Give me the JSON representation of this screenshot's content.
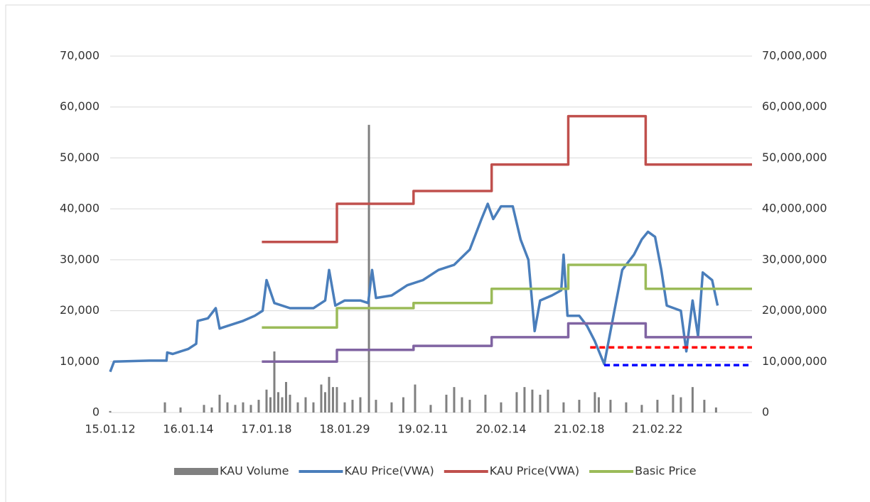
{
  "chart_data": {
    "type": "line",
    "xlim": [
      0,
      8.21
    ],
    "xticks": [
      {
        "value": 0,
        "label": "15.01.12"
      },
      {
        "value": 1,
        "label": "16.01.14"
      },
      {
        "value": 2,
        "label": "17.01.18"
      },
      {
        "value": 3,
        "label": "18.01.29"
      },
      {
        "value": 4,
        "label": "19.02.11"
      },
      {
        "value": 5,
        "label": "20.02.14"
      },
      {
        "value": 6,
        "label": "21.02.18"
      },
      {
        "value": 7,
        "label": "21.02.22"
      }
    ],
    "ylim": [
      0,
      70000
    ],
    "yticks": [
      0,
      {
        "value": 10000,
        "label": "10,000"
      },
      {
        "value": 20000,
        "label": "20,000"
      },
      {
        "value": 30000,
        "label": "30,000"
      },
      {
        "value": 40000,
        "label": "40,000"
      },
      {
        "value": 50000,
        "label": "50,000"
      },
      {
        "value": 60000,
        "label": "60,000"
      },
      {
        "value": 70000,
        "label": "70,000"
      }
    ],
    "y2lim": [
      0,
      70000000
    ],
    "y2ticks": [
      0,
      {
        "value": 10000000,
        "label": "10,000,000"
      },
      {
        "value": 20000000,
        "label": "20,000,000"
      },
      {
        "value": 30000000,
        "label": "30,000,000"
      },
      {
        "value": 40000000,
        "label": "40,000,000"
      },
      {
        "value": 50000000,
        "label": "50,000,000"
      },
      {
        "value": 60000000,
        "label": "60,000,000"
      },
      {
        "value": 70000000,
        "label": "70,000,000"
      }
    ],
    "grid": true,
    "legend": "bottom",
    "series": [
      {
        "name": "KAU Volume",
        "type": "bar",
        "axis": "y2",
        "color": "#808080",
        "x": [
          0.0,
          0.7,
          0.9,
          1.2,
          1.3,
          1.4,
          1.5,
          1.6,
          1.7,
          1.8,
          1.9,
          2.0,
          2.05,
          2.1,
          2.15,
          2.2,
          2.25,
          2.3,
          2.4,
          2.5,
          2.6,
          2.7,
          2.75,
          2.8,
          2.85,
          2.9,
          3.0,
          3.1,
          3.2,
          3.31,
          3.4,
          3.6,
          3.75,
          3.9,
          4.1,
          4.3,
          4.4,
          4.5,
          4.6,
          4.8,
          5.0,
          5.2,
          5.3,
          5.4,
          5.5,
          5.6,
          5.8,
          6.0,
          6.2,
          6.25,
          6.4,
          6.6,
          6.8,
          7.0,
          7.2,
          7.3,
          7.45,
          7.6,
          7.75
        ],
        "values": [
          300000,
          2000000,
          1000000,
          1500000,
          1000000,
          3500000,
          2000000,
          1500000,
          2000000,
          1500000,
          2500000,
          4500000,
          3000000,
          12000000,
          4000000,
          3000000,
          6000000,
          3500000,
          2000000,
          3000000,
          2000000,
          5500000,
          4000000,
          7000000,
          5000000,
          5000000,
          2000000,
          2500000,
          3000000,
          56500000,
          2500000,
          2000000,
          3000000,
          5500000,
          1500000,
          3500000,
          5000000,
          3000000,
          2500000,
          3500000,
          2000000,
          4000000,
          5000000,
          4500000,
          3500000,
          4500000,
          2000000,
          2500000,
          4000000,
          3000000,
          2500000,
          2000000,
          1500000,
          2500000,
          3500000,
          3000000,
          5000000,
          2500000,
          1000000
        ]
      },
      {
        "name": "KAU Price(VWA)",
        "color": "#4a7ebb",
        "x": [
          0.0,
          0.05,
          0.5,
          0.72,
          0.73,
          0.8,
          1.0,
          1.1,
          1.12,
          1.25,
          1.35,
          1.4,
          1.5,
          1.7,
          1.85,
          1.95,
          2.0,
          2.1,
          2.3,
          2.6,
          2.75,
          2.8,
          2.88,
          3.0,
          3.2,
          3.3,
          3.35,
          3.4,
          3.6,
          3.8,
          4.0,
          4.2,
          4.4,
          4.6,
          4.75,
          4.83,
          4.9,
          5.0,
          5.15,
          5.25,
          5.35,
          5.43,
          5.5,
          5.65,
          5.77,
          5.8,
          5.85,
          6.0,
          6.1,
          6.2,
          6.32,
          6.45,
          6.55,
          6.7,
          6.8,
          6.88,
          6.97,
          7.05,
          7.12,
          7.3,
          7.37,
          7.45,
          7.52,
          7.58,
          7.7,
          7.77
        ],
        "values": [
          8000,
          10000,
          10200,
          10200,
          11800,
          11500,
          12500,
          13500,
          18000,
          18500,
          20500,
          16500,
          17000,
          18000,
          19000,
          20000,
          26000,
          21500,
          20500,
          20500,
          22000,
          28000,
          21000,
          22000,
          22000,
          21500,
          28000,
          22500,
          23000,
          25000,
          26000,
          28000,
          29000,
          32000,
          38000,
          41000,
          38000,
          40500,
          40500,
          34000,
          30000,
          16000,
          22000,
          23000,
          24000,
          31000,
          19000,
          19000,
          17000,
          14000,
          9500,
          20000,
          28000,
          31000,
          34000,
          35500,
          34500,
          28000,
          21000,
          20000,
          12000,
          22000,
          15000,
          27500,
          26000,
          21000
        ]
      },
      {
        "name": "KAU Price(VWA)",
        "color": "#c0504d",
        "x": [
          1.94,
          2.9,
          2.9,
          3.88,
          3.88,
          4.88,
          4.88,
          5.86,
          5.86,
          6.85,
          6.85,
          8.21
        ],
        "values": [
          33500,
          33500,
          41000,
          41000,
          43500,
          43500,
          48700,
          48700,
          58200,
          58200,
          48700,
          48700
        ]
      },
      {
        "name": "Basic Price",
        "color": "#9bbb59",
        "x": [
          1.94,
          2.9,
          2.9,
          3.88,
          3.88,
          4.88,
          4.88,
          5.86,
          5.86,
          6.85,
          6.85,
          8.21
        ],
        "values": [
          16700,
          16700,
          20500,
          20500,
          21500,
          21500,
          24300,
          24300,
          29000,
          29000,
          24300,
          24300
        ]
      },
      {
        "color": "#8064a2",
        "x": [
          1.94,
          2.9,
          2.9,
          3.88,
          3.88,
          4.88,
          4.88,
          5.86,
          5.86,
          6.85,
          6.85,
          8.21
        ],
        "values": [
          10000,
          10000,
          12300,
          12300,
          13100,
          13100,
          14800,
          14800,
          17500,
          17500,
          14800,
          14800
        ]
      },
      {
        "color": "#ff0000",
        "dash": true,
        "x": [
          6.14,
          8.21
        ],
        "values": [
          12800,
          12800
        ]
      },
      {
        "color": "#0000ff",
        "dash": true,
        "x": [
          6.32,
          8.21
        ],
        "values": [
          9300,
          9300
        ]
      }
    ]
  }
}
